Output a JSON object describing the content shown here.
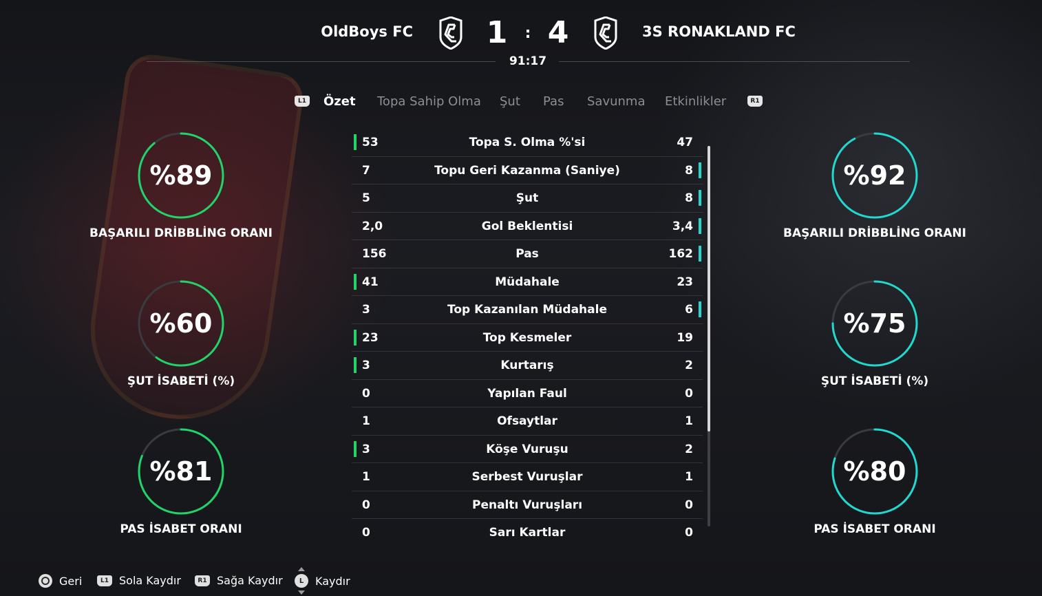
{
  "colors": {
    "home_accent": "#22d36a",
    "away_accent": "#21d8cf",
    "ring_track": "#3a3b40"
  },
  "header": {
    "home_team": "OldBoys FC",
    "away_team": "3S RONAKLAND FC",
    "home_score": "1",
    "away_score": "4",
    "separator": ":",
    "clock": "91:17",
    "badge_icon": "club-shield-icon"
  },
  "tabs": {
    "left_bumper": "L1",
    "right_bumper": "R1",
    "items": [
      {
        "label": "Özet",
        "active": true
      },
      {
        "label": "Topa Sahip Olma",
        "active": false
      },
      {
        "label": "Şut",
        "active": false
      },
      {
        "label": "Pas",
        "active": false
      },
      {
        "label": "Savunma",
        "active": false
      },
      {
        "label": "Etkinlikler",
        "active": false
      }
    ]
  },
  "home_rings": [
    {
      "value_text": "%89",
      "percent": 89,
      "label": "BAŞARILI DRİBBLİNG ORANI"
    },
    {
      "value_text": "%60",
      "percent": 60,
      "label": "ŞUT İSABETİ (%)"
    },
    {
      "value_text": "%81",
      "percent": 81,
      "label": "PAS İSABET ORANI"
    }
  ],
  "away_rings": [
    {
      "value_text": "%92",
      "percent": 92,
      "label": "BAŞARILI DRİBBLİNG ORANI"
    },
    {
      "value_text": "%75",
      "percent": 75,
      "label": "ŞUT İSABETİ (%)"
    },
    {
      "value_text": "%80",
      "percent": 80,
      "label": "PAS İSABET ORANI"
    }
  ],
  "stats": [
    {
      "home": "53",
      "label": "Topa S. Olma %'si",
      "away": "47",
      "leader": "home"
    },
    {
      "home": "7",
      "label": "Topu Geri Kazanma (Saniye)",
      "away": "8",
      "leader": "away"
    },
    {
      "home": "5",
      "label": "Şut",
      "away": "8",
      "leader": "away"
    },
    {
      "home": "2,0",
      "label": "Gol Beklentisi",
      "away": "3,4",
      "leader": "away"
    },
    {
      "home": "156",
      "label": "Pas",
      "away": "162",
      "leader": "away"
    },
    {
      "home": "41",
      "label": "Müdahale",
      "away": "23",
      "leader": "home"
    },
    {
      "home": "3",
      "label": "Top Kazanılan Müdahale",
      "away": "6",
      "leader": "away"
    },
    {
      "home": "23",
      "label": "Top Kesmeler",
      "away": "19",
      "leader": "home"
    },
    {
      "home": "3",
      "label": "Kurtarış",
      "away": "2",
      "leader": "home"
    },
    {
      "home": "0",
      "label": "Yapılan Faul",
      "away": "0",
      "leader": "none"
    },
    {
      "home": "1",
      "label": "Ofsaytlar",
      "away": "1",
      "leader": "none"
    },
    {
      "home": "3",
      "label": "Köşe Vuruşu",
      "away": "2",
      "leader": "home"
    },
    {
      "home": "1",
      "label": "Serbest Vuruşlar",
      "away": "1",
      "leader": "none"
    },
    {
      "home": "0",
      "label": "Penaltı Vuruşları",
      "away": "0",
      "leader": "none"
    },
    {
      "home": "0",
      "label": "Sarı Kartlar",
      "away": "0",
      "leader": "none"
    }
  ],
  "scroll": {
    "visible_fraction": 0.75
  },
  "footer": {
    "back_label": "Geri",
    "scroll_left_label": "Sola Kaydır",
    "scroll_right_label": "Sağa Kaydır",
    "scroll_label": "Kaydır",
    "l1_glyph": "L1",
    "r1_glyph": "R1",
    "stick_glyph": "L"
  }
}
